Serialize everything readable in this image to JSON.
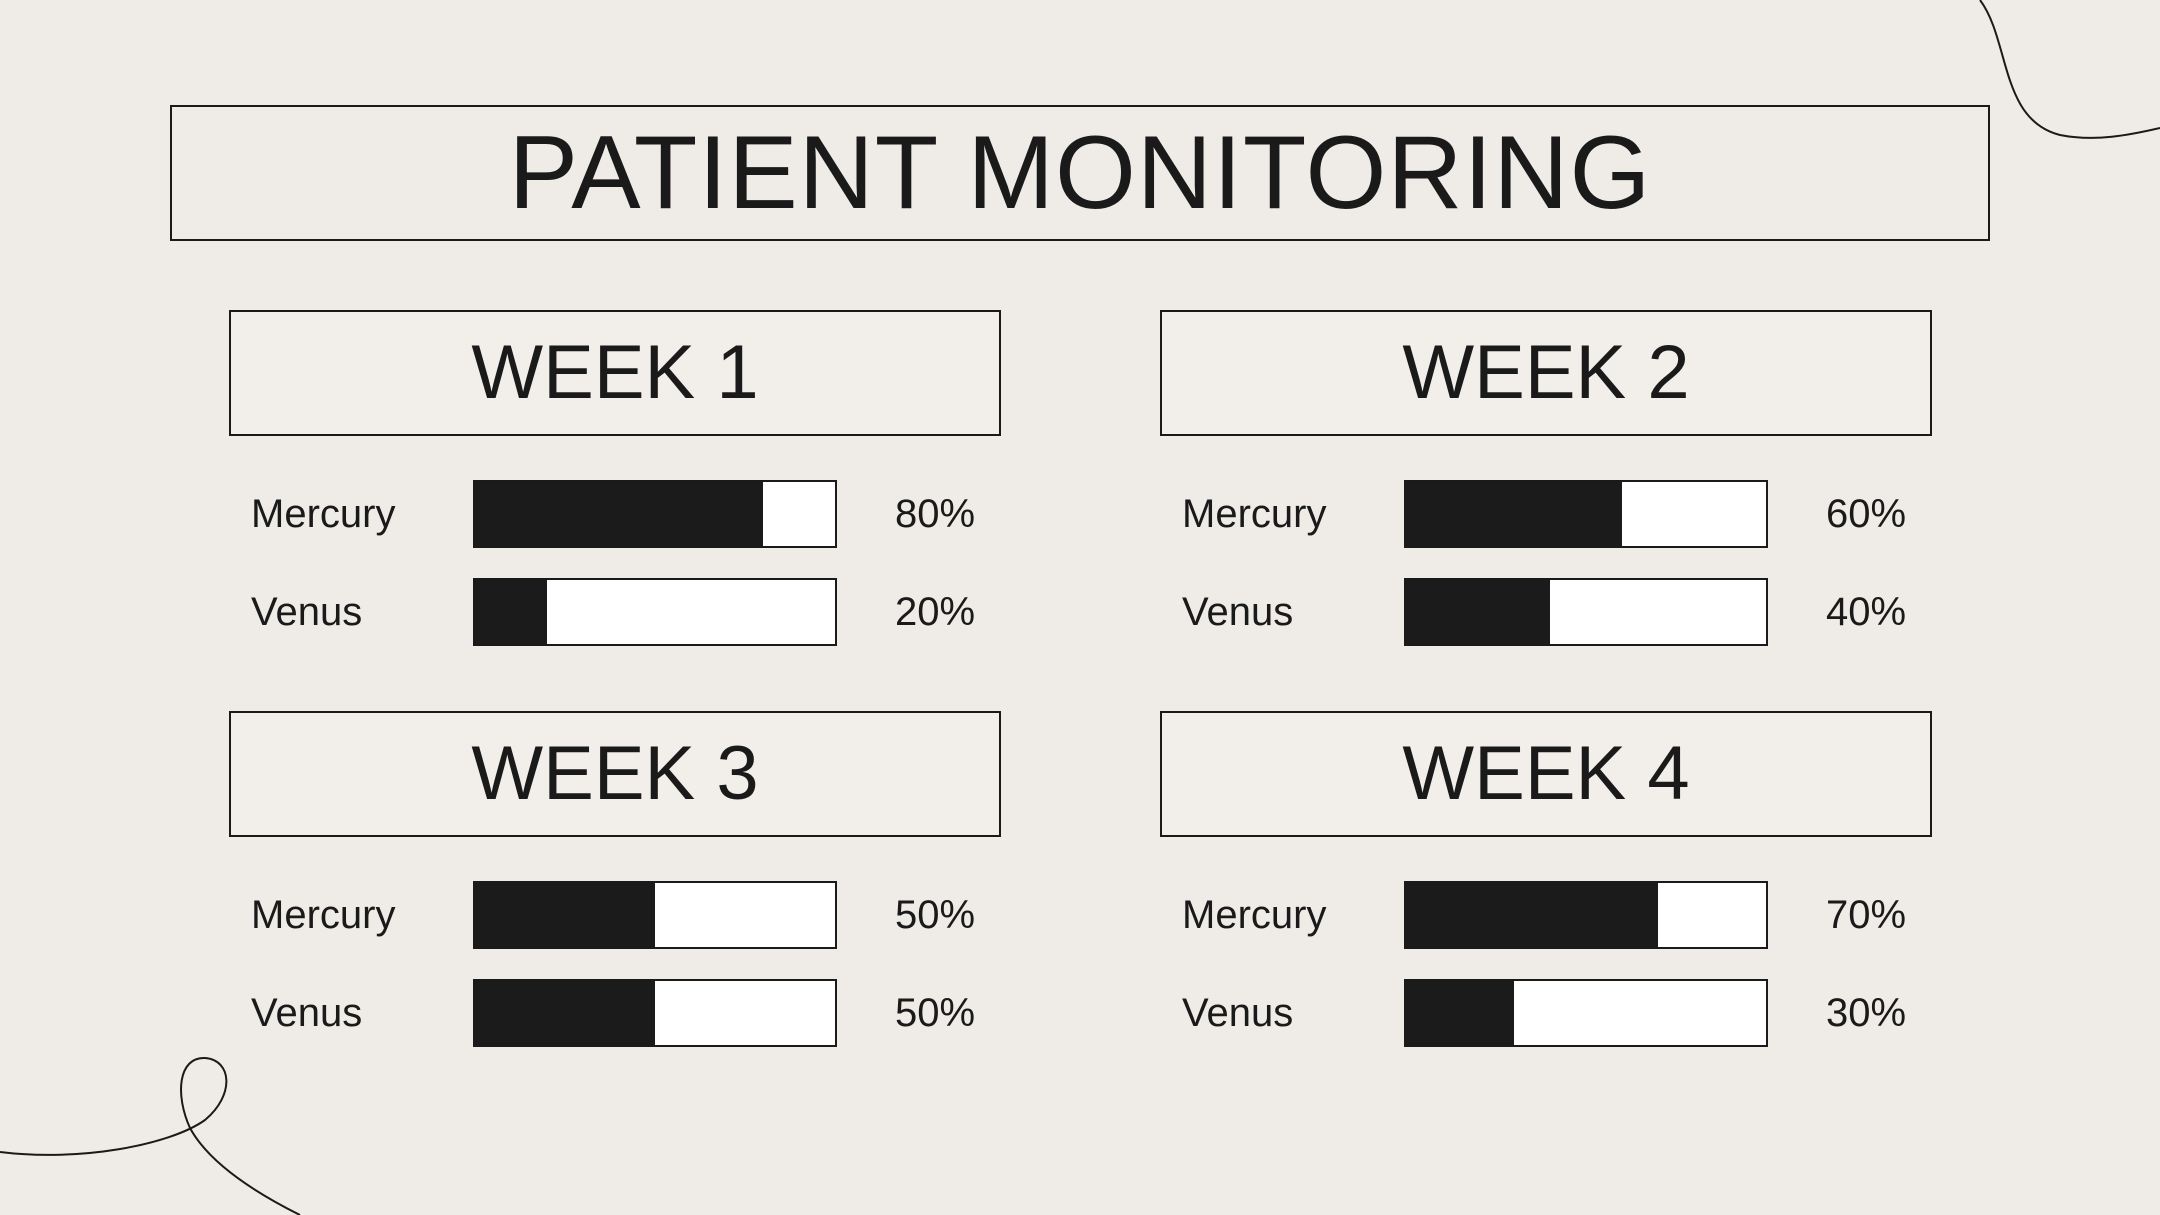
{
  "title": "PATIENT MONITORING",
  "colors": {
    "background": "#efece7",
    "ink": "#1a1a1a",
    "bar_fill": "#1b1b1b",
    "bar_empty": "#ffffff"
  },
  "weeks": [
    {
      "title": "WEEK 1",
      "rows": [
        {
          "label": "Mercury",
          "value": 80,
          "value_label": "80%"
        },
        {
          "label": "Venus",
          "value": 20,
          "value_label": "20%"
        }
      ]
    },
    {
      "title": "WEEK 2",
      "rows": [
        {
          "label": "Mercury",
          "value": 60,
          "value_label": "60%"
        },
        {
          "label": "Venus",
          "value": 40,
          "value_label": "40%"
        }
      ]
    },
    {
      "title": "WEEK 3",
      "rows": [
        {
          "label": "Mercury",
          "value": 50,
          "value_label": "50%"
        },
        {
          "label": "Venus",
          "value": 50,
          "value_label": "50%"
        }
      ]
    },
    {
      "title": "WEEK 4",
      "rows": [
        {
          "label": "Mercury",
          "value": 70,
          "value_label": "70%"
        },
        {
          "label": "Venus",
          "value": 30,
          "value_label": "30%"
        }
      ]
    }
  ]
}
